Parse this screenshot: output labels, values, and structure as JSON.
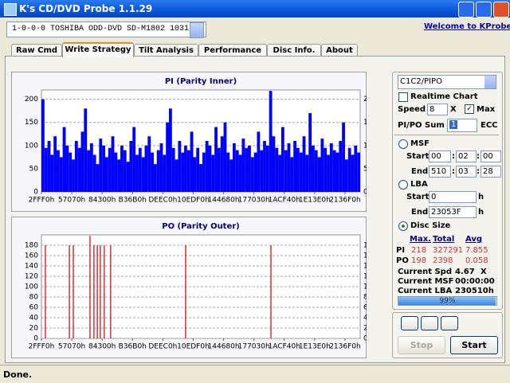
{
  "window": {
    "title": "K's CD/DVD Probe 1.1.29"
  },
  "device": "1-0-0-0 TOSHIBA ODD-DVD SD-M1802 1031",
  "link": "Welcome to KProbe",
  "tabs": [
    "Raw Cmd",
    "Write Strategy",
    "Tilt Analysis",
    "Performance",
    "Disc Info.",
    "About"
  ],
  "chart_data": [
    {
      "type": "bar",
      "title": "PI (Parity Inner)",
      "color": "#0000ff",
      "grid": true,
      "mirror_y": true,
      "xlim": [
        0,
        105
      ],
      "xticks": [
        {
          "value": 0,
          "label": "2FFF0h"
        },
        {
          "value": 10,
          "label": "57070h"
        },
        {
          "value": 20,
          "label": "84300h"
        },
        {
          "value": 30,
          "label": "B36B0h"
        },
        {
          "value": 40,
          "label": "DEEC0h"
        },
        {
          "value": 50,
          "label": "10EDF0h"
        },
        {
          "value": 60,
          "label": "144680h"
        },
        {
          "value": 70,
          "label": "177030h"
        },
        {
          "value": 80,
          "label": "1ACF40h"
        },
        {
          "value": 90,
          "label": "1E13E0h"
        },
        {
          "value": 100,
          "label": "2136F0h"
        }
      ],
      "ylim": [
        0,
        220
      ],
      "yticks": [
        0,
        50,
        100,
        150,
        200
      ],
      "values": [
        200,
        95,
        110,
        80,
        120,
        90,
        75,
        140,
        100,
        85,
        70,
        110,
        95,
        130,
        180,
        90,
        105,
        80,
        60,
        115,
        100,
        75,
        95,
        120,
        85,
        70,
        100,
        90,
        65,
        110,
        140,
        80,
        95,
        75,
        100,
        120,
        85,
        60,
        90,
        105,
        80,
        150,
        180,
        95,
        70,
        110,
        85,
        100,
        90,
        130,
        75,
        95,
        60,
        85,
        110,
        100,
        80,
        140,
        95,
        120,
        150,
        85,
        70,
        105,
        90,
        80,
        115,
        95,
        100,
        75,
        85,
        130,
        90,
        110,
        100,
        218,
        120,
        95,
        80,
        140,
        90,
        105,
        75,
        110,
        95,
        85,
        120,
        80,
        170,
        100,
        90,
        75,
        115,
        95,
        80,
        105,
        90,
        85,
        110,
        150,
        70,
        95,
        80,
        100,
        85
      ]
    },
    {
      "type": "bar",
      "title": "PO (Parity Outer)",
      "color": "#cc0000",
      "grid": true,
      "mirror_y": true,
      "xlim": [
        0,
        105
      ],
      "xticks": [
        {
          "value": 0,
          "label": "2FFF0h"
        },
        {
          "value": 10,
          "label": "57070h"
        },
        {
          "value": 20,
          "label": "84300h"
        },
        {
          "value": 30,
          "label": "B36B0h"
        },
        {
          "value": 40,
          "label": "DEEC0h"
        },
        {
          "value": 50,
          "label": "10EDF0h"
        },
        {
          "value": 60,
          "label": "144680h"
        },
        {
          "value": 70,
          "label": "177030h"
        },
        {
          "value": 80,
          "label": "1ACF40h"
        },
        {
          "value": 90,
          "label": "1E13E0h"
        },
        {
          "value": 100,
          "label": "2136F0h"
        }
      ],
      "ylim": [
        0,
        200
      ],
      "yticks": [
        0,
        20,
        40,
        60,
        80,
        100,
        120,
        140,
        160,
        180
      ],
      "x": [
        1.3,
        9.2,
        10.5,
        16,
        17.3,
        18.4,
        19.4,
        20.7,
        22.8,
        47.5,
        75.6
      ],
      "values": [
        180,
        180,
        180,
        198,
        180,
        180,
        180,
        180,
        180,
        180,
        180
      ]
    }
  ],
  "panel": {
    "mode": "C1C2/PIPO",
    "realtime": "Realtime Chart",
    "speed_label": "Speed",
    "speed": "8",
    "speed_unit": "X",
    "max": "Max",
    "sum_label": "PI/PO Sum",
    "sum": "1",
    "ecc": "ECC",
    "separator": ":",
    "msf": {
      "label": "MSF",
      "start_label": "Start",
      "start": [
        "00",
        "02",
        "00"
      ],
      "end_label": "End",
      "end": [
        "510",
        "03",
        "28"
      ]
    },
    "lba": {
      "label": "LBA",
      "start_label": "Start",
      "start": "0",
      "end_label": "End",
      "end": "23053F",
      "unit": "h"
    },
    "disc_size": "Disc Size"
  },
  "stats": {
    "headers": [
      "Max.",
      "Total",
      "Avg"
    ],
    "rows": [
      [
        "PI",
        "218",
        "327291",
        "7.855"
      ],
      [
        "PO",
        "198",
        "2398",
        "0.058"
      ]
    ]
  },
  "current": {
    "spd_label": "Current Spd",
    "spd": "4.67",
    "spd_unit": "X",
    "msf_label": "Current MSF",
    "msf": "00:00:00",
    "lba_label": "Current LBA",
    "lba": "230510h"
  },
  "progress": {
    "value": 99,
    "label": "99%"
  },
  "buttons": [
    "Stop",
    "Start"
  ],
  "status": "Done."
}
